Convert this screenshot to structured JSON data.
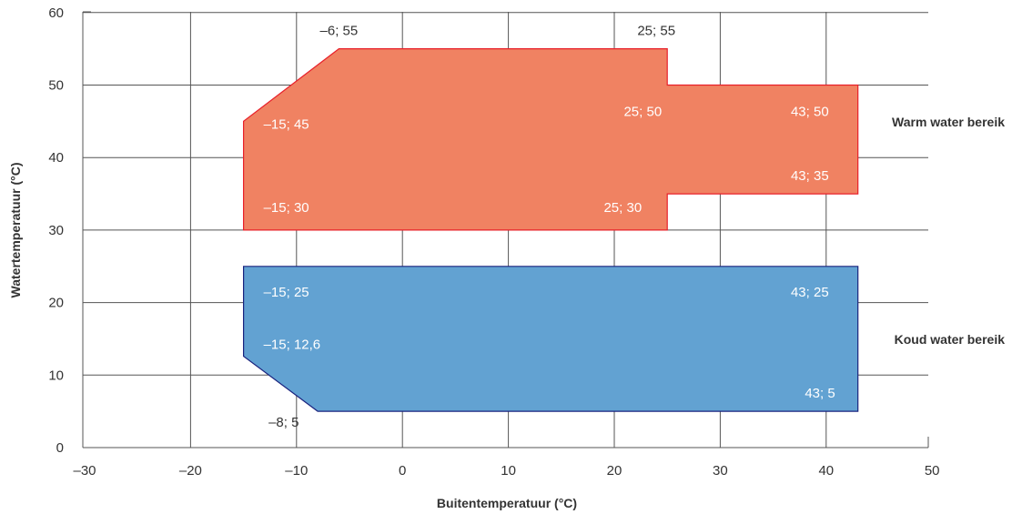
{
  "chart_data": {
    "type": "area",
    "xlabel": "Buitentemperatuur (°C)",
    "ylabel": "Watertemperatuur (°C)",
    "xlim": [
      -30,
      50
    ],
    "ylim": [
      0,
      60
    ],
    "x_ticks": [
      -30,
      -20,
      -10,
      0,
      10,
      20,
      30,
      40,
      50
    ],
    "x_tick_labels": [
      "–30",
      "–20",
      "–10",
      "0",
      "10",
      "20",
      "30",
      "40",
      "50"
    ],
    "y_ticks": [
      0,
      10,
      20,
      30,
      40,
      50,
      60
    ],
    "y_tick_labels": [
      "0",
      "10",
      "20",
      "30",
      "40",
      "50",
      "60"
    ],
    "grid": true,
    "regions": [
      {
        "name": "Warm water bereik",
        "color": "#F08262",
        "edge_color": "#E8202A",
        "polygon": [
          [
            -15,
            30
          ],
          [
            25,
            30
          ],
          [
            25,
            35
          ],
          [
            43,
            35
          ],
          [
            43,
            50
          ],
          [
            25,
            50
          ],
          [
            25,
            55
          ],
          [
            -6,
            55
          ],
          [
            -15,
            45
          ]
        ],
        "points": [
          {
            "label": "–6; 55",
            "x": -6,
            "y": 55
          },
          {
            "label": "25; 55",
            "x": 25,
            "y": 55
          },
          {
            "label": "–15; 45",
            "x": -15,
            "y": 45
          },
          {
            "label": "25; 50",
            "x": 25,
            "y": 50
          },
          {
            "label": "43; 50",
            "x": 43,
            "y": 50
          },
          {
            "label": "43; 35",
            "x": 43,
            "y": 35
          },
          {
            "label": "–15; 30",
            "x": -15,
            "y": 30
          },
          {
            "label": "25; 30",
            "x": 25,
            "y": 30
          }
        ]
      },
      {
        "name": "Koud water bereik",
        "color": "#62A2D2",
        "edge_color": "#1A237E",
        "polygon": [
          [
            -15,
            25
          ],
          [
            43,
            25
          ],
          [
            43,
            5
          ],
          [
            -8,
            5
          ],
          [
            -15,
            12.6
          ]
        ],
        "points": [
          {
            "label": "–15; 25",
            "x": -15,
            "y": 25
          },
          {
            "label": "43; 25",
            "x": 43,
            "y": 25
          },
          {
            "label": "–15; 12,6",
            "x": -15,
            "y": 12.6
          },
          {
            "label": "43; 5",
            "x": 43,
            "y": 5
          },
          {
            "label": "–8; 5",
            "x": -8,
            "y": 5
          }
        ]
      }
    ]
  }
}
